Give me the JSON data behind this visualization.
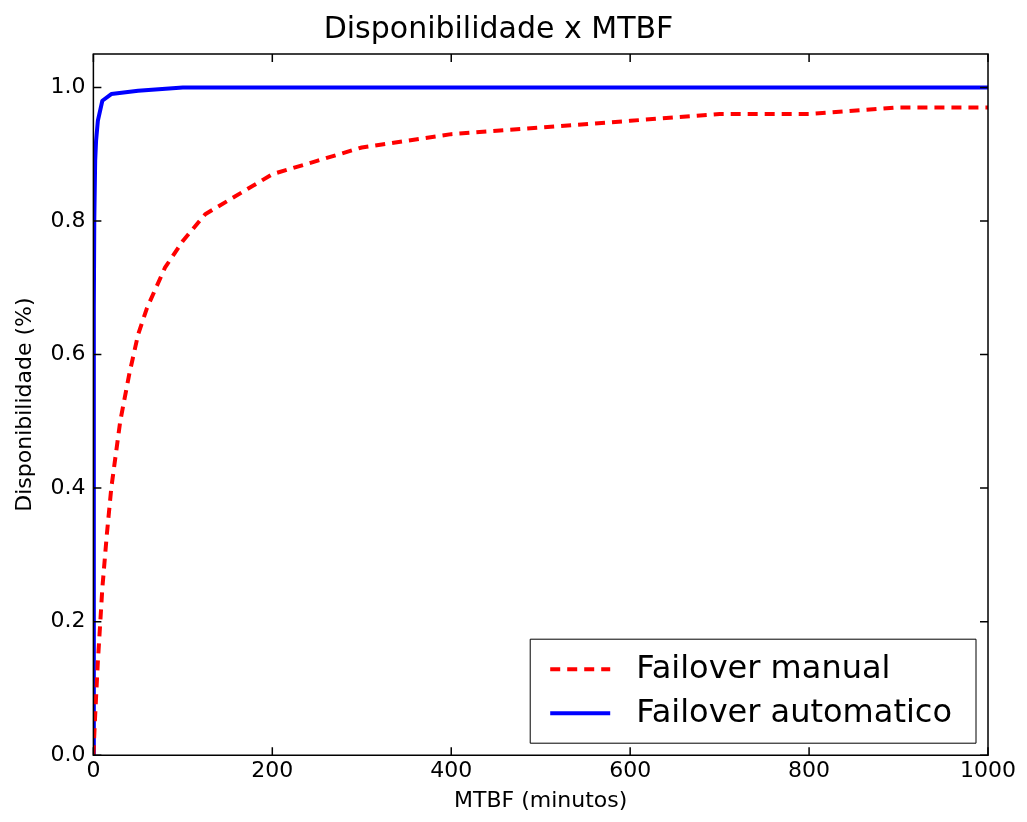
{
  "chart_data": {
    "type": "line",
    "title": "Disponibilidade x MTBF",
    "xlabel": "MTBF (minutos)",
    "ylabel": "Disponibilidade (%)",
    "xlim": [
      0,
      1000
    ],
    "xticks": [
      0,
      200,
      400,
      600,
      800,
      1000
    ],
    "ylim": [
      0,
      1.05
    ],
    "yticks": [
      {
        "value": 0,
        "label": "0.0"
      },
      {
        "value": 0.2,
        "label": "0.2"
      },
      {
        "value": 0.4,
        "label": "0.4"
      },
      {
        "value": 0.6,
        "label": "0.6"
      },
      {
        "value": 0.8,
        "label": "0.8"
      },
      {
        "value": 1,
        "label": "1.0"
      }
    ],
    "grid": false,
    "legend": "bottom right",
    "marker": "none",
    "series": [
      {
        "name": "Failover manual",
        "color": "#ff0000",
        "line_style": "dashed",
        "x": [
          0,
          2,
          5,
          10,
          15,
          20,
          30,
          40,
          50,
          60,
          80,
          100,
          125,
          150,
          200,
          250,
          300,
          400,
          500,
          600,
          700,
          800,
          900,
          1000
        ],
        "values": [
          0,
          0.06,
          0.14,
          0.25,
          0.33,
          0.4,
          0.5,
          0.57,
          0.63,
          0.67,
          0.73,
          0.77,
          0.81,
          0.83,
          0.87,
          0.89,
          0.91,
          0.93,
          0.94,
          0.95,
          0.96,
          0.96,
          0.97,
          0.97
        ]
      },
      {
        "name": "Failover automatico",
        "color": "#0000ff",
        "line_style": "solid",
        "x": [
          0,
          0.5,
          1,
          2,
          3,
          5,
          10,
          20,
          50,
          100,
          300,
          1000
        ],
        "values": [
          0,
          0.67,
          0.8,
          0.89,
          0.92,
          0.95,
          0.98,
          0.99,
          0.995,
          1,
          1,
          1
        ]
      }
    ]
  }
}
